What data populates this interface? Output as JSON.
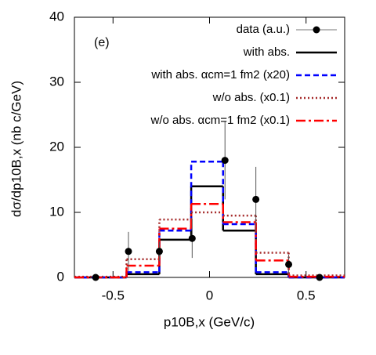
{
  "chart_data": {
    "type": "histogram",
    "annotation": "(e)",
    "xlabel": "p10B,x (GeV/c)",
    "ylabel": "dσ/dp10B,x (nb c/GeV)",
    "xlim": [
      -0.7,
      0.7
    ],
    "xticks": [
      -0.5,
      0,
      0.5
    ],
    "ylim": [
      0,
      40
    ],
    "yticks": [
      0,
      10,
      20,
      30,
      40
    ],
    "legend": "upper right",
    "bins": [
      -0.7,
      -0.43,
      -0.26,
      -0.095,
      0.07,
      0.24,
      0.41,
      0.7
    ],
    "points": {
      "name": "data (a.u.)",
      "color": "#000000",
      "x": [
        -0.59,
        -0.42,
        -0.26,
        -0.09,
        0.08,
        0.24,
        0.41,
        0.57
      ],
      "values": [
        0,
        4,
        4,
        6,
        18,
        12,
        2,
        0
      ],
      "errors": [
        0,
        3,
        1.5,
        3,
        6,
        5,
        1.5,
        0
      ]
    },
    "series": [
      {
        "name": "with abs.",
        "color": "#000000",
        "dash": "solid",
        "values": [
          0,
          0.5,
          5.8,
          14,
          7.2,
          0.5,
          0
        ]
      },
      {
        "name": "with abs. αcm=1 fm2 (x20)",
        "color": "#0000ff",
        "dash": "dashed",
        "values": [
          0,
          0.8,
          7.2,
          17.8,
          8.2,
          0.8,
          0
        ]
      },
      {
        "name": "w/o abs. (x0.1)",
        "color": "#a52a2a",
        "dash": "dotted",
        "values": [
          0.1,
          2.8,
          8.9,
          10,
          9.5,
          3.8,
          0.3
        ]
      },
      {
        "name": "w/o abs. αcm=1 fm2 (x0.1)",
        "color": "#ff0000",
        "dash": "dashdot",
        "values": [
          0,
          1.8,
          7.5,
          11.3,
          8.5,
          2.6,
          0.1
        ]
      }
    ]
  }
}
